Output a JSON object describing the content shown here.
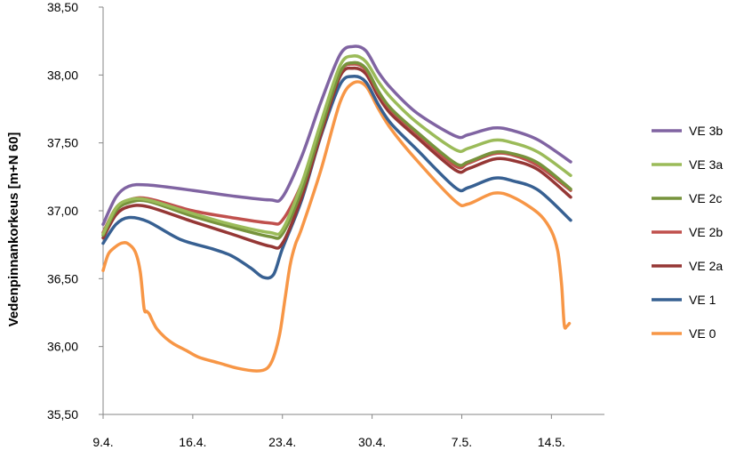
{
  "chart_data": {
    "type": "line",
    "title": "",
    "xlabel": "",
    "ylabel": "Vedenpinnankorkeus [m+N 60]",
    "ylim": [
      35.5,
      38.5
    ],
    "yticks": [
      "35,50",
      "36,00",
      "36,50",
      "37,00",
      "37,50",
      "38,00",
      "38,50"
    ],
    "xlim": [
      0,
      39
    ],
    "xticks": [
      {
        "x": 0,
        "label": "9.4."
      },
      {
        "x": 7,
        "label": "16.4."
      },
      {
        "x": 14,
        "label": "23.4."
      },
      {
        "x": 21,
        "label": "30.4."
      },
      {
        "x": 28,
        "label": "7.5."
      },
      {
        "x": 35,
        "label": "14.5."
      }
    ],
    "grid": false,
    "legend": "right",
    "series": [
      {
        "name": "VE 3b",
        "color": "#8064a2",
        "x": [
          0,
          1,
          2,
          3.5,
          7,
          10,
          13,
          14,
          15.5,
          17,
          18.5,
          19.5,
          20.5,
          21.5,
          22.5,
          24.5,
          27.5,
          28.5,
          30.5,
          32,
          34,
          36.5
        ],
        "y": [
          36.9,
          37.1,
          37.18,
          37.19,
          37.15,
          37.11,
          37.08,
          37.1,
          37.4,
          37.8,
          38.15,
          38.21,
          38.18,
          38.02,
          37.9,
          37.72,
          37.55,
          37.56,
          37.61,
          37.59,
          37.52,
          37.36
        ]
      },
      {
        "name": "VE 3a",
        "color": "#9bbb59",
        "x": [
          0,
          1,
          2,
          3.5,
          7,
          10,
          13,
          14,
          15.5,
          17,
          18.5,
          19.5,
          20.5,
          21.5,
          22.5,
          24.5,
          27.5,
          28.5,
          30.5,
          32,
          34,
          36.5
        ],
        "y": [
          36.83,
          37.02,
          37.08,
          37.08,
          36.98,
          36.9,
          36.84,
          36.86,
          37.2,
          37.65,
          38.07,
          38.14,
          38.1,
          37.95,
          37.83,
          37.65,
          37.45,
          37.46,
          37.52,
          37.5,
          37.43,
          37.26
        ]
      },
      {
        "name": "VE 2c",
        "color": "#77933c",
        "x": [
          0,
          1,
          2,
          3.5,
          7,
          10,
          13,
          14,
          15.5,
          17,
          18.5,
          19.5,
          20.5,
          21.5,
          22.5,
          24.5,
          27.5,
          28.5,
          30.5,
          32,
          34,
          36.5
        ],
        "y": [
          36.82,
          37.0,
          37.06,
          37.07,
          36.96,
          36.88,
          36.81,
          36.83,
          37.15,
          37.6,
          38.02,
          38.09,
          38.05,
          37.88,
          37.75,
          37.58,
          37.35,
          37.36,
          37.43,
          37.42,
          37.35,
          37.16
        ]
      },
      {
        "name": "VE 2b",
        "color": "#c0504d",
        "x": [
          0,
          1,
          2,
          3.5,
          7,
          10,
          13,
          14,
          15.5,
          17,
          18.5,
          19.5,
          20.5,
          21.5,
          22.5,
          24.5,
          27.5,
          28.5,
          30.5,
          32,
          34,
          36.5
        ],
        "y": [
          36.84,
          37.02,
          37.08,
          37.09,
          37.0,
          36.95,
          36.91,
          36.93,
          37.2,
          37.62,
          38.02,
          38.08,
          38.04,
          37.87,
          37.74,
          37.57,
          37.33,
          37.35,
          37.42,
          37.41,
          37.33,
          37.15
        ]
      },
      {
        "name": "VE 2a",
        "color": "#953735",
        "x": [
          0,
          1,
          2,
          3.5,
          7,
          10,
          13,
          14,
          15.5,
          17,
          18.5,
          19.5,
          20.5,
          21.5,
          22.5,
          24.5,
          27.5,
          28.5,
          30.5,
          32,
          34,
          36.5
        ],
        "y": [
          36.8,
          36.97,
          37.03,
          37.03,
          36.92,
          36.83,
          36.74,
          36.76,
          37.1,
          37.56,
          37.99,
          38.05,
          38.01,
          37.84,
          37.71,
          37.54,
          37.3,
          37.31,
          37.38,
          37.37,
          37.3,
          37.1
        ]
      },
      {
        "name": "VE 1",
        "color": "#376092",
        "x": [
          0,
          1,
          2,
          3.5,
          6,
          8.5,
          10,
          11.5,
          12.5,
          13.3,
          14,
          15.5,
          17,
          18.5,
          19.5,
          20.5,
          21.5,
          22.5,
          24.5,
          27.5,
          28.5,
          30.5,
          32,
          34,
          36.5
        ],
        "y": [
          36.76,
          36.9,
          36.95,
          36.92,
          36.79,
          36.72,
          36.67,
          36.58,
          36.51,
          36.53,
          36.72,
          37.08,
          37.55,
          37.93,
          37.99,
          37.95,
          37.78,
          37.64,
          37.45,
          37.17,
          37.17,
          37.24,
          37.22,
          37.15,
          36.93
        ]
      },
      {
        "name": "VE 0",
        "color": "#f79646",
        "x": [
          0,
          0.4,
          0.9,
          1.4,
          1.9,
          2.5,
          2.9,
          3.2,
          3.4,
          3.6,
          3.9,
          4.2,
          4.8,
          5.5,
          6.5,
          7.5,
          9,
          10.5,
          12,
          12.8,
          13.3,
          13.8,
          14.2,
          14.6,
          15,
          15.5,
          17,
          18.5,
          19.5,
          20.5,
          21.5,
          22.5,
          24.5,
          27.5,
          28.5,
          30.5,
          32,
          34,
          35,
          35.5,
          35.8,
          36,
          36.2,
          36.4
        ],
        "y": [
          36.56,
          36.68,
          36.73,
          36.76,
          36.76,
          36.7,
          36.55,
          36.28,
          36.26,
          36.24,
          36.18,
          36.13,
          36.07,
          36.02,
          35.97,
          35.92,
          35.88,
          35.84,
          35.82,
          35.84,
          35.92,
          36.1,
          36.35,
          36.6,
          36.75,
          36.87,
          37.3,
          37.8,
          37.94,
          37.92,
          37.75,
          37.6,
          37.37,
          37.07,
          37.05,
          37.13,
          37.1,
          36.98,
          36.85,
          36.7,
          36.45,
          36.16,
          36.15,
          36.17
        ]
      }
    ]
  }
}
